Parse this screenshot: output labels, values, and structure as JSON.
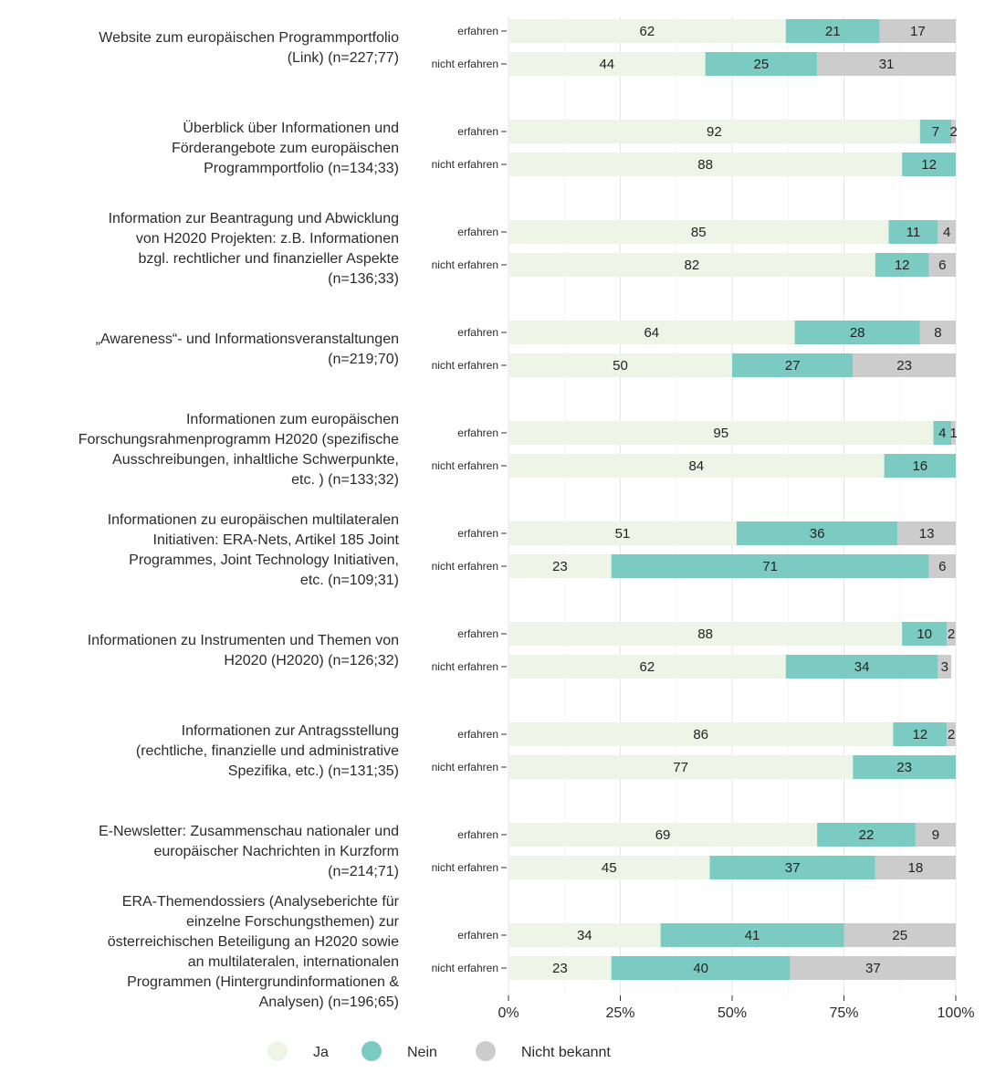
{
  "chart_data": {
    "type": "bar",
    "orientation": "horizontal",
    "stacked": true,
    "xlim": [
      0,
      100
    ],
    "x_ticks": [
      "0%",
      "25%",
      "50%",
      "75%",
      "100%"
    ],
    "legend_position": "bottom",
    "grid": true,
    "series": [
      {
        "name": "Ja",
        "color": "#eff5e6"
      },
      {
        "name": "Nein",
        "color": "#7ccbc2"
      },
      {
        "name": "Nicht bekannt",
        "color": "#cccccc"
      }
    ],
    "group_labels": [
      "erfahren",
      "nicht erfahren"
    ],
    "categories": [
      {
        "label_lines": [
          "Website zum europäischen Programmportfolio",
          "(Link) (n=227;77)"
        ],
        "rows": [
          {
            "group": "erfahren",
            "values": [
              62,
              21,
              17
            ]
          },
          {
            "group": "nicht erfahren",
            "values": [
              44,
              25,
              31
            ]
          }
        ]
      },
      {
        "label_lines": [
          "Überblick über Informationen und",
          "Förderangebote zum europäischen",
          "Programmportfolio (n=134;33)"
        ],
        "rows": [
          {
            "group": "erfahren",
            "values": [
              92,
              7,
              2
            ]
          },
          {
            "group": "nicht erfahren",
            "values": [
              88,
              12,
              null
            ]
          }
        ]
      },
      {
        "label_lines": [
          "Information zur Beantragung und Abwicklung",
          "von H2020 Projekten: z.B. Informationen",
          "bzgl. rechtlicher und finanzieller Aspekte",
          "(n=136;33)"
        ],
        "rows": [
          {
            "group": "erfahren",
            "values": [
              85,
              11,
              4
            ]
          },
          {
            "group": "nicht erfahren",
            "values": [
              82,
              12,
              6
            ]
          }
        ]
      },
      {
        "label_lines": [
          "„Awareness“- und Informationsveranstaltungen",
          "(n=219;70)"
        ],
        "rows": [
          {
            "group": "erfahren",
            "values": [
              64,
              28,
              8
            ]
          },
          {
            "group": "nicht erfahren",
            "values": [
              50,
              27,
              23
            ]
          }
        ]
      },
      {
        "label_lines": [
          "Informationen zum europäischen",
          "Forschungsrahmenprogramm H2020 (spezifische",
          "Ausschreibungen, inhaltliche Schwerpunkte,",
          "etc. ) (n=133;32)"
        ],
        "rows": [
          {
            "group": "erfahren",
            "values": [
              95,
              4,
              1
            ]
          },
          {
            "group": "nicht erfahren",
            "values": [
              84,
              16,
              null
            ]
          }
        ]
      },
      {
        "label_lines": [
          "Informationen zu europäischen multilateralen",
          "Initiativen: ERA-Nets, Artikel 185 Joint",
          "Programmes, Joint Technology Initiativen,",
          "etc. (n=109;31)"
        ],
        "rows": [
          {
            "group": "erfahren",
            "values": [
              51,
              36,
              13
            ]
          },
          {
            "group": "nicht erfahren",
            "values": [
              23,
              71,
              6
            ]
          }
        ]
      },
      {
        "label_lines": [
          "Informationen zu Instrumenten und Themen von",
          "H2020 (H2020) (n=126;32)"
        ],
        "rows": [
          {
            "group": "erfahren",
            "values": [
              88,
              10,
              2
            ]
          },
          {
            "group": "nicht erfahren",
            "values": [
              62,
              34,
              3
            ]
          }
        ]
      },
      {
        "label_lines": [
          "Informationen zur Antragsstellung",
          "(rechtliche, finanzielle und administrative",
          "Spezifika, etc.) (n=131;35)"
        ],
        "rows": [
          {
            "group": "erfahren",
            "values": [
              86,
              12,
              2
            ]
          },
          {
            "group": "nicht erfahren",
            "values": [
              77,
              23,
              null
            ]
          }
        ]
      },
      {
        "label_lines": [
          "E-Newsletter: Zusammenschau nationaler und",
          "europäischer Nachrichten in Kurzform",
          "(n=214;71)"
        ],
        "rows": [
          {
            "group": "erfahren",
            "values": [
              69,
              22,
              9
            ]
          },
          {
            "group": "nicht erfahren",
            "values": [
              45,
              37,
              18
            ]
          }
        ]
      },
      {
        "label_lines": [
          "ERA-Themendossiers (Analyseberichte für",
          "einzelne Forschungsthemen) zur",
          "österreichischen Beteiligung an H2020 sowie",
          "an multilateralen, internationalen",
          "Programmen (Hintergrundinformationen &",
          "Analysen) (n=196;65)"
        ],
        "rows": [
          {
            "group": "erfahren",
            "values": [
              34,
              41,
              25
            ]
          },
          {
            "group": "nicht erfahren",
            "values": [
              23,
              40,
              37
            ]
          }
        ]
      }
    ]
  }
}
